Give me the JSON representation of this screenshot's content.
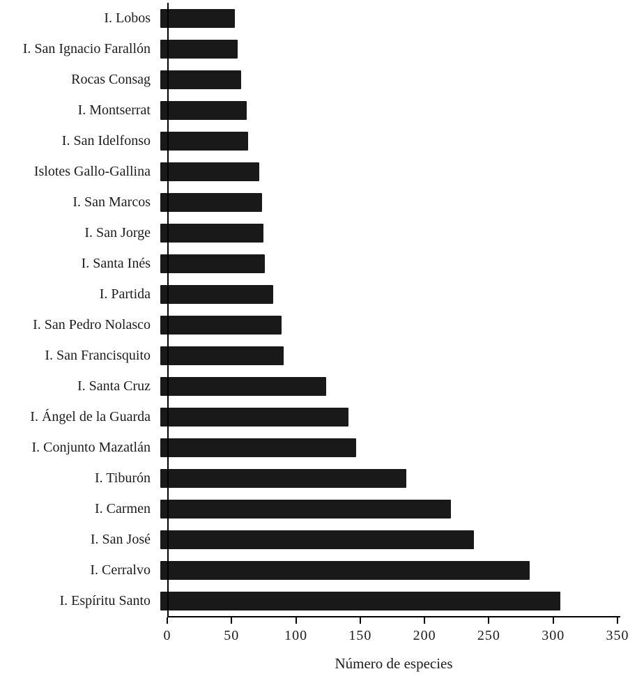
{
  "chart_data": {
    "type": "bar",
    "orientation": "horizontal",
    "title": "",
    "xlabel": "Número de especies",
    "ylabel": "",
    "xlim": [
      0,
      350
    ],
    "xticks": [
      0,
      50,
      100,
      150,
      200,
      250,
      300,
      350
    ],
    "grid": false,
    "legend": "none",
    "bar_color": "#191919",
    "categories": [
      "I. Lobos",
      "I. San Ignacio Farallón",
      "Rocas Consag",
      "I. Montserrat",
      "I. San Idelfonso",
      "Islotes Gallo-Gallina",
      "I. San Marcos",
      "I. San Jorge",
      "I. Santa Inés",
      "I. Partida",
      "I. San Pedro Nolasco",
      "I. San Francisquito",
      "I. Santa Cruz",
      "I. Ángel de la Guarda",
      "I. Conjunto Mazatlán",
      "I. Tiburón",
      "I. Carmen",
      "I. San José",
      "I. Cerralvo",
      "I. Espíritu Santo"
    ],
    "values": [
      58,
      60,
      63,
      67,
      68,
      77,
      79,
      80,
      81,
      88,
      94,
      96,
      129,
      146,
      152,
      191,
      226,
      244,
      287,
      311
    ]
  }
}
